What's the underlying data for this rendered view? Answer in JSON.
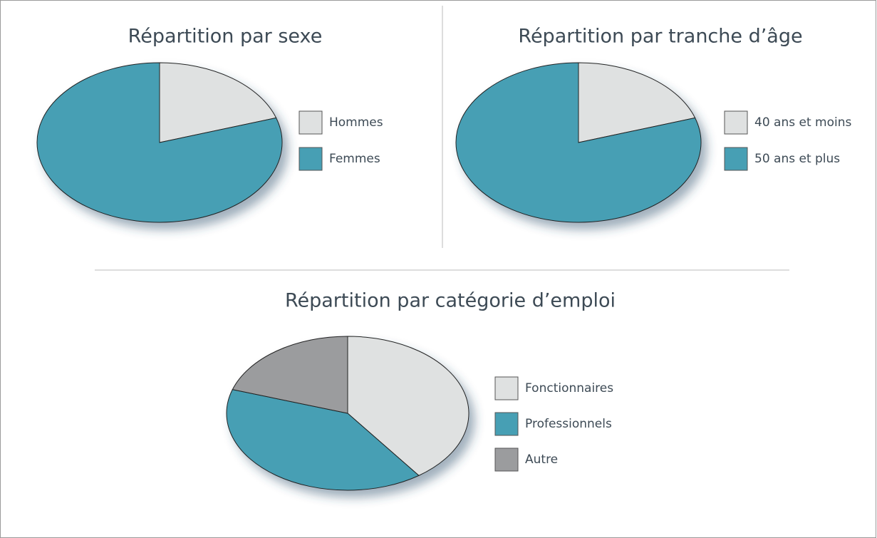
{
  "chart_data": [
    {
      "type": "pie",
      "title": "Répartition par sexe",
      "categories": [
        "Hommes",
        "Femmes"
      ],
      "values": [
        20,
        80
      ],
      "colors": [
        "#dfe1e1",
        "#479fb4"
      ]
    },
    {
      "type": "pie",
      "title": "Répartition par tranche d’âge",
      "categories": [
        "40 ans et moins",
        "50 ans et plus"
      ],
      "values": [
        20,
        80
      ],
      "colors": [
        "#dfe1e1",
        "#479fb4"
      ]
    },
    {
      "type": "pie",
      "title": "Répartition par catégorie d’emploi",
      "categories": [
        "Fonctionnaires",
        "Professionnels",
        "Autre"
      ],
      "values": [
        40,
        40,
        20
      ],
      "colors": [
        "#dfe1e1",
        "#479fb4",
        "#9b9c9e"
      ]
    }
  ]
}
